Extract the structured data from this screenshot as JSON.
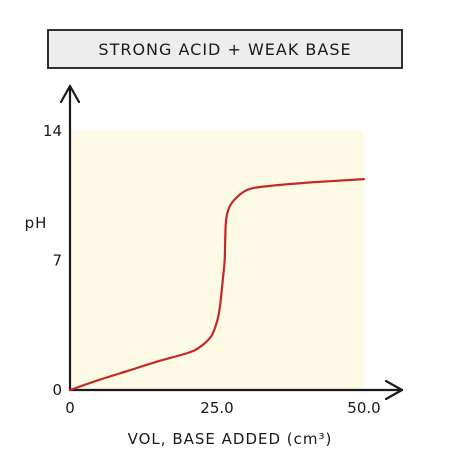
{
  "chart_data": {
    "type": "line",
    "title": "STRONG ACID + WEAK BASE",
    "xlabel": "VOL, BASE ADDED (cm³)",
    "ylabel": "pH",
    "xlim": [
      0,
      50
    ],
    "ylim": [
      0,
      14
    ],
    "x_ticks": [
      {
        "value": 0,
        "label": "0"
      },
      {
        "value": 25,
        "label": "25.0"
      },
      {
        "value": 50,
        "label": "50.0"
      }
    ],
    "y_ticks": [
      {
        "value": 0,
        "label": "0"
      },
      {
        "value": 7,
        "label": "7"
      },
      {
        "value": 14,
        "label": "14"
      }
    ],
    "grid": false,
    "series": [
      {
        "name": "",
        "color": "#c62828",
        "x": [
          0,
          5,
          10,
          15,
          20,
          22,
          24,
          25,
          25.5,
          26,
          26.3,
          26.5,
          27,
          28,
          30,
          33,
          40,
          45,
          50
        ],
        "y": [
          0,
          0.55,
          1.05,
          1.55,
          2.0,
          2.3,
          2.9,
          3.7,
          4.5,
          6.0,
          7.0,
          9.0,
          9.8,
          10.3,
          10.8,
          11.0,
          11.2,
          11.3,
          11.4
        ]
      }
    ],
    "colors": {
      "plot_background": "#fdfbe6",
      "axis": "#1a1a1a",
      "title_box": "#ededed"
    }
  }
}
